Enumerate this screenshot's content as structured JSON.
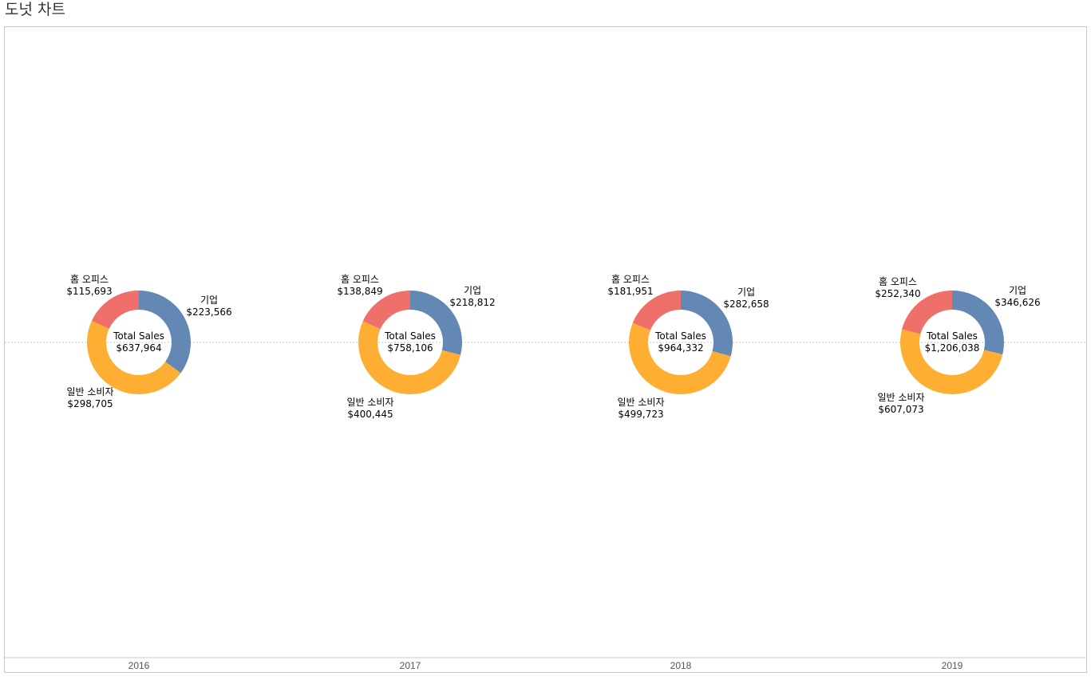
{
  "page": {
    "title": "도넛 차트"
  },
  "chart_data": {
    "type": "pie",
    "variant": "donut",
    "categories": [
      "2016",
      "2017",
      "2018",
      "2019"
    ],
    "center_label": "Total Sales",
    "segment_colors": {
      "기업": "#6388b4",
      "일반 소비자": "#ffae34",
      "홈 오피스": "#ef6f6a"
    },
    "grid": false,
    "donuts": [
      {
        "year": "2016",
        "total": "$637,964",
        "segments": [
          {
            "name": "기업",
            "value": 223566,
            "label": "$223,566"
          },
          {
            "name": "일반 소비자",
            "value": 298705,
            "label": "$298,705"
          },
          {
            "name": "홈 오피스",
            "value": 115693,
            "label": "$115,693"
          }
        ]
      },
      {
        "year": "2017",
        "total": "$758,106",
        "segments": [
          {
            "name": "기업",
            "value": 218812,
            "label": "$218,812"
          },
          {
            "name": "일반 소비자",
            "value": 400445,
            "label": "$400,445"
          },
          {
            "name": "홈 오피스",
            "value": 138849,
            "label": "$138,849"
          }
        ]
      },
      {
        "year": "2018",
        "total": "$964,332",
        "segments": [
          {
            "name": "기업",
            "value": 282658,
            "label": "$282,658"
          },
          {
            "name": "일반 소비자",
            "value": 499723,
            "label": "$499,723"
          },
          {
            "name": "홈 오피스",
            "value": 181951,
            "label": "$181,951"
          }
        ]
      },
      {
        "year": "2019",
        "total": "$1,206,038",
        "segments": [
          {
            "name": "기업",
            "value": 346626,
            "label": "$346,626"
          },
          {
            "name": "일반 소비자",
            "value": 607073,
            "label": "$607,073"
          },
          {
            "name": "홈 오피스",
            "value": 252340,
            "label": "$252,340"
          }
        ]
      }
    ]
  }
}
